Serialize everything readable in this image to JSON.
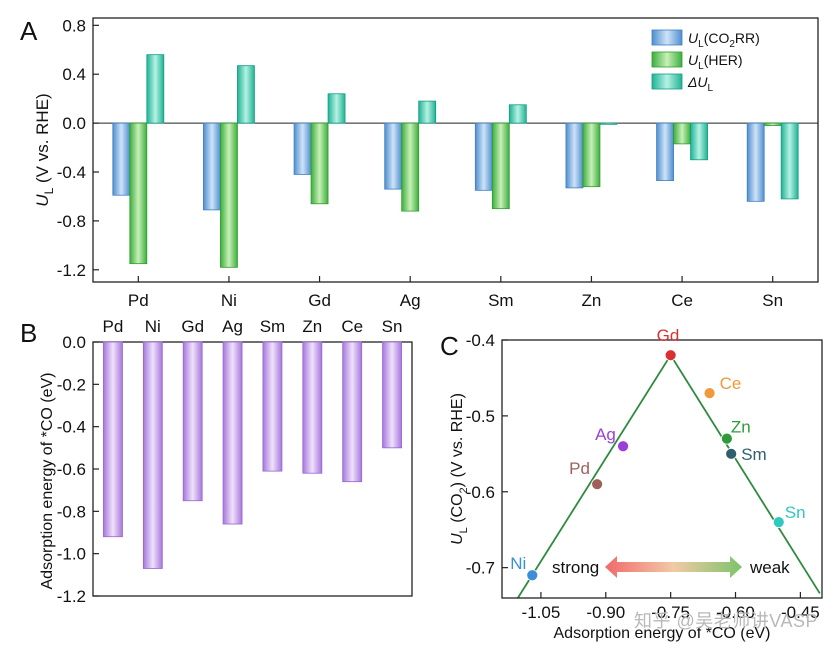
{
  "panels": {
    "a": "A",
    "b": "B",
    "c": "C"
  },
  "watermark": "知乎 @吴老师讲VASP",
  "chart_data": [
    {
      "id": "A",
      "type": "bar",
      "categories": [
        "Pd",
        "Ni",
        "Gd",
        "Ag",
        "Sm",
        "Zn",
        "Ce",
        "Sn"
      ],
      "series": [
        {
          "name": "UL(CO2RR)",
          "legend": {
            "main": "U",
            "sub": "L",
            "tail": "(CO",
            "sub2": "2",
            "end": "RR)"
          },
          "values": [
            -0.59,
            -0.71,
            -0.42,
            -0.54,
            -0.55,
            -0.53,
            -0.47,
            -0.64
          ],
          "color": "#6fa8dc"
        },
        {
          "name": "UL(HER)",
          "legend": {
            "main": "U",
            "sub": "L",
            "tail": "(HER)",
            "sub2": "",
            "end": ""
          },
          "values": [
            -1.15,
            -1.18,
            -0.66,
            -0.72,
            -0.7,
            -0.52,
            -0.17,
            -0.02
          ],
          "color": "#5cc85c"
        },
        {
          "name": "ΔUL",
          "legend": {
            "main": "ΔU",
            "sub": "L",
            "tail": "",
            "sub2": "",
            "end": ""
          },
          "values": [
            0.56,
            0.47,
            0.24,
            0.18,
            0.15,
            -0.01,
            -0.3,
            -0.62
          ],
          "color": "#3ec9b0"
        }
      ],
      "ylabel": {
        "main": "U",
        "sub": "L",
        "rest": " (V vs. RHE)"
      },
      "yticks": [
        "0.8",
        "0.4",
        "0.0",
        "-0.4",
        "-0.8",
        "-1.2"
      ],
      "ylim": [
        -1.3,
        0.86
      ],
      "legend_position": "top-right",
      "grid": false
    },
    {
      "id": "B",
      "type": "bar",
      "categories": [
        "Pd",
        "Ni",
        "Gd",
        "Ag",
        "Sm",
        "Zn",
        "Ce",
        "Sn"
      ],
      "values": [
        -0.92,
        -1.07,
        -0.75,
        -0.86,
        -0.61,
        -0.62,
        -0.66,
        -0.5
      ],
      "ylabel": "Adsorption energy of *CO (eV)",
      "yticks": [
        "0.0",
        "-0.2",
        "-0.4",
        "-0.6",
        "-0.8",
        "-1.0",
        "-1.2"
      ],
      "ylim": [
        -1.2,
        0.0
      ],
      "color": "#b58ae0",
      "grid": false
    },
    {
      "id": "C",
      "type": "scatter",
      "points": [
        {
          "label": "Ni",
          "x": -1.07,
          "y": -0.71,
          "color": "#3a8fd8"
        },
        {
          "label": "Pd",
          "x": -0.92,
          "y": -0.59,
          "color": "#a0605a"
        },
        {
          "label": "Ag",
          "x": -0.86,
          "y": -0.54,
          "color": "#9b3fd6"
        },
        {
          "label": "Gd",
          "x": -0.75,
          "y": -0.42,
          "color": "#d93030"
        },
        {
          "label": "Ce",
          "x": -0.66,
          "y": -0.47,
          "color": "#f09a3a"
        },
        {
          "label": "Zn",
          "x": -0.62,
          "y": -0.53,
          "color": "#2f9a3a"
        },
        {
          "label": "Sm",
          "x": -0.61,
          "y": -0.55,
          "color": "#2f5f6f"
        },
        {
          "label": "Sn",
          "x": -0.5,
          "y": -0.64,
          "color": "#2fc9bf"
        }
      ],
      "trend_lines": [
        {
          "from": [
            -1.12,
            -0.755
          ],
          "to": [
            -0.75,
            -0.42
          ]
        },
        {
          "from": [
            -0.75,
            -0.42
          ],
          "to": [
            -0.405,
            -0.734
          ]
        }
      ],
      "xlabel": "Adsorption energy of *CO (eV)",
      "ylabel": {
        "main": "U",
        "sub": "L",
        "mid": " (CO",
        "sub2": "2",
        "rest": ") (V vs. RHE)"
      },
      "xticks": [
        "-1.05",
        "-0.90",
        "-0.75",
        "-0.60",
        "-0.45"
      ],
      "yticks": [
        "-0.4",
        "-0.5",
        "-0.6",
        "-0.7"
      ],
      "xlim": [
        -1.14,
        -0.4
      ],
      "ylim": [
        -0.74,
        -0.4
      ],
      "annotation": {
        "left": "strong",
        "right": "weak"
      },
      "grid": false
    }
  ]
}
